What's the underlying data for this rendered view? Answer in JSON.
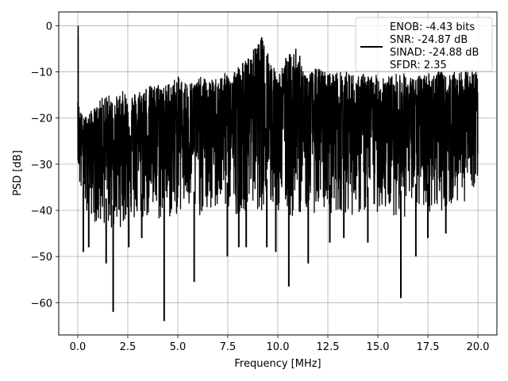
{
  "chart_data": {
    "type": "line",
    "title": "",
    "xlabel": "Frequency [MHz]",
    "ylabel": "PSD [dB]",
    "xlim": [
      -0.95,
      20.95
    ],
    "ylim": [
      -67,
      3
    ],
    "xticks": [
      0.0,
      2.5,
      5.0,
      7.5,
      10.0,
      12.5,
      15.0,
      17.5,
      20.0
    ],
    "xtick_labels": [
      "0.0",
      "2.5",
      "5.0",
      "7.5",
      "10.0",
      "12.5",
      "15.0",
      "17.5",
      "20.0"
    ],
    "yticks": [
      0,
      -10,
      -20,
      -30,
      -40,
      -50,
      -60
    ],
    "ytick_labels": [
      "0",
      "−10",
      "−20",
      "−30",
      "−40",
      "−50",
      "−60"
    ],
    "grid": true,
    "legend_position": "top-right",
    "legend_entries": [
      "ENOB: -4.43 bits",
      "SNR: -24.87 dB",
      "SINAD: -24.88 dB",
      "SFDR: 2.35"
    ],
    "series": [
      {
        "color": "#000000",
        "x_range": [
          0,
          20
        ],
        "envelope_x": [
          0,
          0.02,
          0.05,
          0.1,
          0.3,
          0.5,
          0.8,
          1.0,
          1.3,
          1.6,
          1.75,
          2.0,
          2.3,
          2.6,
          3.0,
          3.4,
          3.8,
          4.2,
          4.35,
          4.6,
          5.0,
          5.4,
          5.8,
          6.2,
          6.6,
          7.0,
          7.5,
          7.9,
          8.2,
          8.5,
          8.8,
          9.0,
          9.2,
          9.4,
          9.6,
          9.8,
          10.0,
          10.4,
          10.6,
          10.9,
          11.2,
          11.6,
          12.0,
          12.4,
          12.8,
          13.2,
          13.6,
          14.0,
          14.4,
          14.8,
          15.2,
          15.6,
          16.0,
          16.2,
          16.6,
          17.0,
          17.4,
          17.8,
          18.0,
          18.4,
          18.8,
          19.2,
          19.6,
          20.0
        ],
        "envelope_upper": [
          -12,
          0,
          -17,
          -18,
          -20,
          -19,
          -18,
          -17,
          -15,
          -15,
          -16,
          -15,
          -14,
          -15,
          -14,
          -13,
          -13,
          -12,
          -13,
          -12,
          -11,
          -12,
          -12,
          -11,
          -12,
          -11,
          -10,
          -9,
          -8,
          -7,
          -5,
          -4,
          -2.5,
          -5,
          -7,
          -9,
          -10,
          -8,
          -6,
          -5,
          -9,
          -10,
          -9,
          -10,
          -10,
          -10,
          -10,
          -11,
          -10,
          -11,
          -10,
          -11,
          -10,
          -10,
          -11,
          -11,
          -10,
          -10,
          -9,
          -11,
          -10,
          -10,
          -9,
          -10
        ],
        "envelope_lower": [
          -25,
          -36,
          -30,
          -36,
          -40,
          -40,
          -42,
          -44,
          -43,
          -44,
          -45,
          -44,
          -43,
          -43,
          -43,
          -42,
          -42,
          -43,
          -42,
          -42,
          -41,
          -40,
          -42,
          -41,
          -41,
          -40,
          -40,
          -41,
          -40,
          -40,
          -39,
          -40,
          -40,
          -39,
          -40,
          -41,
          -41,
          -40,
          -42,
          -42,
          -40,
          -40,
          -41,
          -40,
          -41,
          -40,
          -41,
          -41,
          -41,
          -41,
          -40,
          -41,
          -41,
          -42,
          -41,
          -40,
          -40,
          -41,
          -40,
          -40,
          -39,
          -39,
          -36,
          -34
        ],
        "dips": [
          {
            "x": 0.28,
            "y": -49
          },
          {
            "x": 0.55,
            "y": -48
          },
          {
            "x": 1.42,
            "y": -51.5
          },
          {
            "x": 1.77,
            "y": -62
          },
          {
            "x": 2.55,
            "y": -48
          },
          {
            "x": 3.2,
            "y": -46
          },
          {
            "x": 4.32,
            "y": -64
          },
          {
            "x": 5.82,
            "y": -55.5
          },
          {
            "x": 7.48,
            "y": -50
          },
          {
            "x": 8.05,
            "y": -48
          },
          {
            "x": 8.42,
            "y": -48
          },
          {
            "x": 9.45,
            "y": -48
          },
          {
            "x": 9.9,
            "y": -49
          },
          {
            "x": 10.55,
            "y": -56.5
          },
          {
            "x": 11.52,
            "y": -51.5
          },
          {
            "x": 12.6,
            "y": -47
          },
          {
            "x": 13.3,
            "y": -46
          },
          {
            "x": 14.5,
            "y": -47
          },
          {
            "x": 16.15,
            "y": -59
          },
          {
            "x": 16.9,
            "y": -50
          },
          {
            "x": 17.5,
            "y": -46
          },
          {
            "x": 18.4,
            "y": -45
          }
        ],
        "peaks": [
          {
            "x": 0.02,
            "y": 0
          },
          {
            "x": 9.2,
            "y": -2.5
          },
          {
            "x": 9.05,
            "y": -4
          },
          {
            "x": 8.9,
            "y": -5
          },
          {
            "x": 10.9,
            "y": -5
          },
          {
            "x": 9.5,
            "y": -6
          },
          {
            "x": 11.1,
            "y": -6.5
          },
          {
            "x": 10.4,
            "y": -7
          }
        ]
      }
    ]
  }
}
